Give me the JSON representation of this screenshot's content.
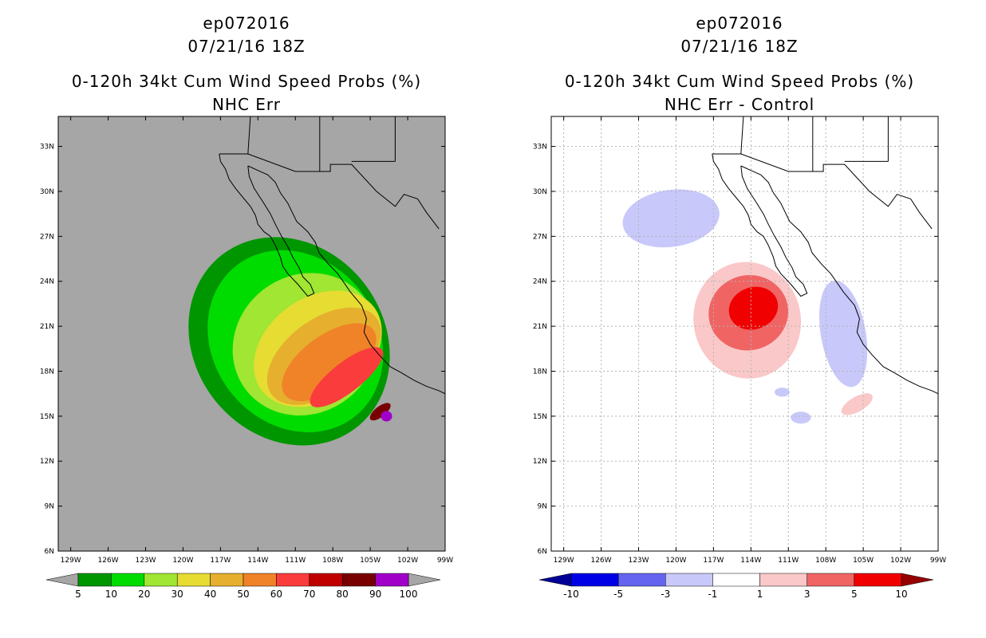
{
  "charts": [
    {
      "id": "left",
      "title_line1": "ep072016",
      "title_line2": "07/21/16 18Z",
      "title_line3": "0-120h 34kt Cum Wind Speed Probs (%)",
      "title_line4": "NHC Err",
      "background": "#a6a6a6"
    },
    {
      "id": "right",
      "title_line1": "ep072016",
      "title_line2": "07/21/16 18Z",
      "title_line3": "0-120h 34kt Cum Wind Speed Probs (%)",
      "title_line4": "NHC Err - Control",
      "background": "#ffffff"
    }
  ],
  "chart_data": [
    {
      "type": "heatmap",
      "title": "0-120h 34kt Cum Wind Speed Probs (%) — NHC Err",
      "storm": "ep072016",
      "valid_time": "07/21/16 18Z",
      "x_range_lon": [
        -130,
        -99
      ],
      "y_range_lat": [
        6,
        35
      ],
      "x_ticks": [
        {
          "v": -129,
          "l": "129W"
        },
        {
          "v": -126,
          "l": "126W"
        },
        {
          "v": -123,
          "l": "123W"
        },
        {
          "v": -120,
          "l": "120W"
        },
        {
          "v": -117,
          "l": "117W"
        },
        {
          "v": -114,
          "l": "114W"
        },
        {
          "v": -111,
          "l": "111W"
        },
        {
          "v": -108,
          "l": "108W"
        },
        {
          "v": -105,
          "l": "105W"
        },
        {
          "v": -102,
          "l": "102W"
        },
        {
          "v": -99,
          "l": "99W"
        }
      ],
      "y_ticks": [
        {
          "v": 6,
          "l": "6N"
        },
        {
          "v": 9,
          "l": "9N"
        },
        {
          "v": 12,
          "l": "12N"
        },
        {
          "v": 15,
          "l": "15N"
        },
        {
          "v": 18,
          "l": "18N"
        },
        {
          "v": 21,
          "l": "21N"
        },
        {
          "v": 24,
          "l": "24N"
        },
        {
          "v": 27,
          "l": "27N"
        },
        {
          "v": 30,
          "l": "30N"
        },
        {
          "v": 33,
          "l": "33N"
        }
      ],
      "colorbar": {
        "labels": [
          "5",
          "10",
          "20",
          "30",
          "40",
          "50",
          "60",
          "70",
          "80",
          "90",
          "100"
        ],
        "colors": [
          "#009600",
          "#00dc00",
          "#a0e632",
          "#e6dc32",
          "#e6af2d",
          "#f08228",
          "#fa3c3c",
          "#c00000",
          "#780000",
          "#a000c8"
        ],
        "under": "#a6a6a6",
        "over": "#a6a6a6"
      },
      "contours": [
        {
          "level": 5,
          "color": "#009600",
          "center": [
            -111.5,
            20.0
          ],
          "rx": 7.6,
          "ry": 7.3,
          "rot": -38
        },
        {
          "level": 10,
          "color": "#00dc00",
          "center": [
            -111.0,
            20.0
          ],
          "rx": 6.6,
          "ry": 6.4,
          "rot": -38
        },
        {
          "level": 20,
          "color": "#a0e632",
          "center": [
            -110.2,
            19.8
          ],
          "rx": 6.0,
          "ry": 4.6,
          "rot": -38
        },
        {
          "level": 30,
          "color": "#e6dc32",
          "center": [
            -109.2,
            19.5
          ],
          "rx": 5.6,
          "ry": 3.4,
          "rot": -36
        },
        {
          "level": 40,
          "color": "#e6af2d",
          "center": [
            -108.7,
            19.0
          ],
          "rx": 5.2,
          "ry": 2.5,
          "rot": -36
        },
        {
          "level": 50,
          "color": "#f08228",
          "center": [
            -108.3,
            18.6
          ],
          "rx": 4.4,
          "ry": 1.8,
          "rot": -36
        },
        {
          "level": 60,
          "color": "#fa3c3c",
          "center": [
            -106.9,
            17.6
          ],
          "rx": 3.6,
          "ry": 1.0,
          "rot": -38
        },
        {
          "level": 80,
          "color": "#780000",
          "center": [
            -104.2,
            15.3
          ],
          "rx": 1.0,
          "ry": 0.35,
          "rot": -38
        },
        {
          "level": 90,
          "color": "#a000c8",
          "center": [
            -103.7,
            15.0
          ],
          "rx": 0.45,
          "ry": 0.35,
          "rot": 0
        }
      ]
    },
    {
      "type": "heatmap",
      "title": "0-120h 34kt Cum Wind Speed Probs (%) — NHC Err - Control",
      "storm": "ep072016",
      "valid_time": "07/21/16 18Z",
      "x_range_lon": [
        -130,
        -99
      ],
      "y_range_lat": [
        6,
        35
      ],
      "grid": true,
      "x_ticks": [
        {
          "v": -129,
          "l": "129W"
        },
        {
          "v": -126,
          "l": "126W"
        },
        {
          "v": -123,
          "l": "123W"
        },
        {
          "v": -120,
          "l": "120W"
        },
        {
          "v": -117,
          "l": "117W"
        },
        {
          "v": -114,
          "l": "114W"
        },
        {
          "v": -111,
          "l": "111W"
        },
        {
          "v": -108,
          "l": "108W"
        },
        {
          "v": -105,
          "l": "105W"
        },
        {
          "v": -102,
          "l": "102W"
        },
        {
          "v": -99,
          "l": "99W"
        }
      ],
      "y_ticks": [
        {
          "v": 6,
          "l": "6N"
        },
        {
          "v": 9,
          "l": "9N"
        },
        {
          "v": 12,
          "l": "12N"
        },
        {
          "v": 15,
          "l": "15N"
        },
        {
          "v": 18,
          "l": "18N"
        },
        {
          "v": 21,
          "l": "21N"
        },
        {
          "v": 24,
          "l": "24N"
        },
        {
          "v": 27,
          "l": "27N"
        },
        {
          "v": 30,
          "l": "30N"
        },
        {
          "v": 33,
          "l": "33N"
        }
      ],
      "colorbar": {
        "labels": [
          "-10",
          "-5",
          "-3",
          "-1",
          "1",
          "3",
          "5",
          "10"
        ],
        "colors": [
          "#0000e6",
          "#6464f0",
          "#c8c8fa",
          "#ffffff",
          "#fac8c8",
          "#f06464",
          "#f00000"
        ],
        "under": "#000096",
        "over": "#960000"
      },
      "contours": [
        {
          "level": -3,
          "color": "#c8c8fa",
          "center": [
            -120.4,
            28.2
          ],
          "rx": 3.9,
          "ry": 1.9,
          "rot": -8
        },
        {
          "level": -3,
          "color": "#c8c8fa",
          "center": [
            -106.6,
            20.5
          ],
          "rx": 1.8,
          "ry": 3.6,
          "rot": -10
        },
        {
          "level": -3,
          "color": "#c8c8fa",
          "center": [
            -110.0,
            14.9
          ],
          "rx": 0.8,
          "ry": 0.4,
          "rot": 0
        },
        {
          "level": -3,
          "color": "#c8c8fa",
          "center": [
            -111.5,
            16.6
          ],
          "rx": 0.6,
          "ry": 0.3,
          "rot": 0
        },
        {
          "level": 1,
          "color": "#fac8c8",
          "center": [
            -114.3,
            21.4
          ],
          "rx": 4.3,
          "ry": 3.9,
          "rot": -10
        },
        {
          "level": 1,
          "color": "#fac8c8",
          "center": [
            -105.5,
            15.8
          ],
          "rx": 1.4,
          "ry": 0.5,
          "rot": -30
        },
        {
          "level": 3,
          "color": "#f06464",
          "center": [
            -114.2,
            21.9
          ],
          "rx": 3.2,
          "ry": 2.5,
          "rot": -15
        },
        {
          "level": 5,
          "color": "#f00000",
          "center": [
            -113.8,
            22.2
          ],
          "rx": 2.0,
          "ry": 1.4,
          "rot": -20
        }
      ]
    }
  ]
}
